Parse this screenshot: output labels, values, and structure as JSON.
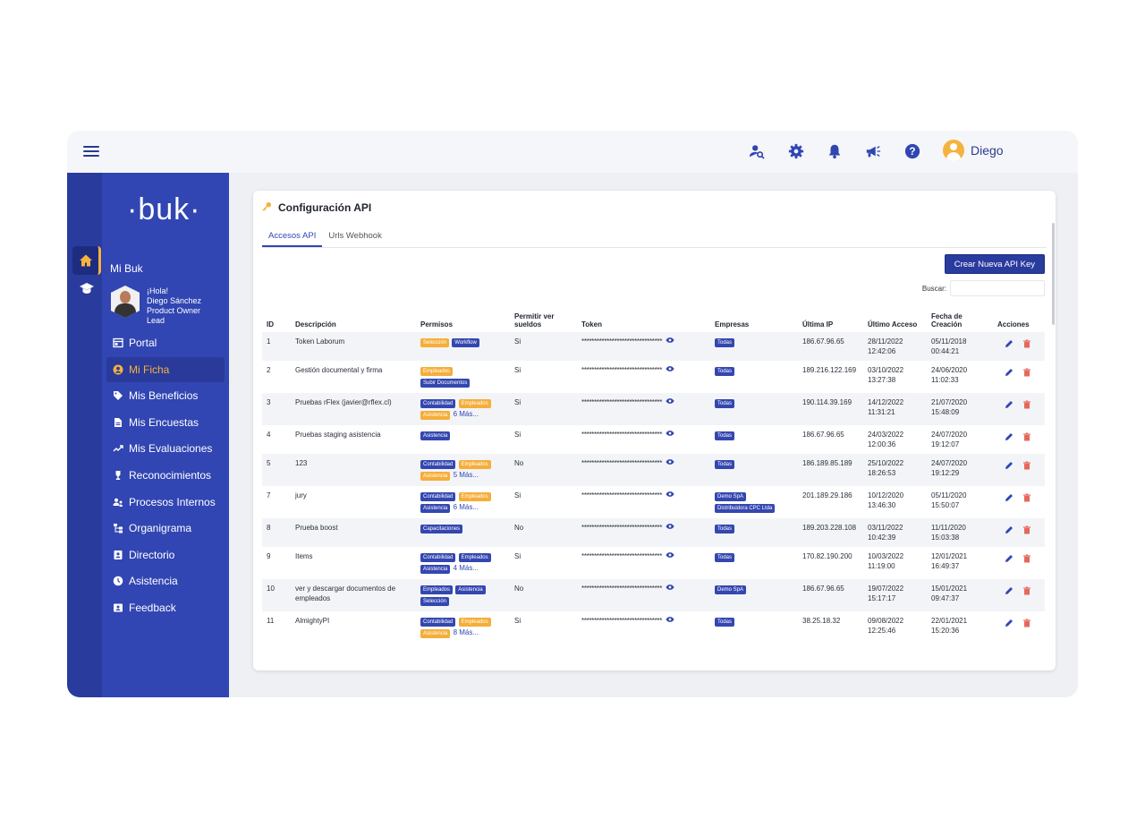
{
  "topbar": {
    "user_name": "Diego",
    "icons": [
      "menu-icon",
      "user-search-icon",
      "gear-icon",
      "bell-icon",
      "megaphone-icon",
      "help-icon"
    ]
  },
  "sidebar": {
    "logo": "·buk·",
    "section": "Mi Buk",
    "profile": {
      "greeting": "¡Hola!",
      "name": "Diego Sánchez",
      "role_line1": "Product Owner",
      "role_line2": "Lead"
    },
    "items": [
      {
        "label": "Portal",
        "icon": "portal-icon"
      },
      {
        "label": "Mi Ficha",
        "icon": "user-circle-icon",
        "active": true
      },
      {
        "label": "Mis Beneficios",
        "icon": "tag-icon"
      },
      {
        "label": "Mis Encuestas",
        "icon": "document-icon"
      },
      {
        "label": "Mis Evaluaciones",
        "icon": "trend-icon"
      },
      {
        "label": "Reconocimientos",
        "icon": "trophy-icon"
      },
      {
        "label": "Procesos Internos",
        "icon": "users-icon"
      },
      {
        "label": "Organigrama",
        "icon": "org-chart-icon"
      },
      {
        "label": "Directorio",
        "icon": "contact-icon"
      },
      {
        "label": "Asistencia",
        "icon": "clock-icon"
      },
      {
        "label": "Feedback",
        "icon": "feedback-icon"
      }
    ]
  },
  "card": {
    "title": "Configuración API",
    "tabs": [
      "Accesos API",
      "Urls Webhook"
    ],
    "new_button": "Crear Nueva API Key",
    "search_label": "Buscar:"
  },
  "table": {
    "headers": [
      "ID",
      "Descripción",
      "Permisos",
      "Permitir ver sueldos",
      "Token",
      "Empresas",
      "Última IP",
      "Último Acceso",
      "Fecha de Creación",
      "Acciones"
    ],
    "token_mask": "********************************",
    "rows": [
      {
        "id": "1",
        "desc": "Token Laborum",
        "perms": [
          [
            "Selección",
            "y"
          ],
          [
            "Workflow",
            "b"
          ]
        ],
        "more": "",
        "sueldos": "Si",
        "empresas": [
          "Todas"
        ],
        "ip": "186.67.96.65",
        "acceso_d": "28/11/2022",
        "acceso_t": "12:42:06",
        "creacion_d": "05/11/2018",
        "creacion_t": "00:44:21"
      },
      {
        "id": "2",
        "desc": "Gestión documental y firma",
        "perms": [
          [
            "Empleados",
            "y"
          ],
          [
            "Subir Documentos",
            "b"
          ]
        ],
        "more": "",
        "sueldos": "Si",
        "empresas": [
          "Todas"
        ],
        "ip": "189.216.122.169",
        "acceso_d": "03/10/2022",
        "acceso_t": "13:27:38",
        "creacion_d": "24/06/2020",
        "creacion_t": "11:02:33"
      },
      {
        "id": "3",
        "desc": "Pruebas rFlex (javier@rflex.cl)",
        "perms": [
          [
            "Contabilidad",
            "b"
          ],
          [
            "Empleados",
            "y"
          ],
          [
            "Asistencia",
            "y"
          ]
        ],
        "more": "6 Más...",
        "sueldos": "Si",
        "empresas": [
          "Todas"
        ],
        "ip": "190.114.39.169",
        "acceso_d": "14/12/2022",
        "acceso_t": "11:31:21",
        "creacion_d": "21/07/2020",
        "creacion_t": "15:48:09"
      },
      {
        "id": "4",
        "desc": "Pruebas staging asistencia",
        "perms": [
          [
            "Asistencia",
            "b"
          ]
        ],
        "more": "",
        "sueldos": "Si",
        "empresas": [
          "Todas"
        ],
        "ip": "186.67.96.65",
        "acceso_d": "24/03/2022",
        "acceso_t": "12:00:36",
        "creacion_d": "24/07/2020",
        "creacion_t": "19:12:07"
      },
      {
        "id": "5",
        "desc": "123",
        "perms": [
          [
            "Contabilidad",
            "b"
          ],
          [
            "Empleados",
            "y"
          ],
          [
            "Asistencia",
            "y"
          ]
        ],
        "more": "5 Más...",
        "sueldos": "No",
        "empresas": [
          "Todas"
        ],
        "ip": "186.189.85.189",
        "acceso_d": "25/10/2022",
        "acceso_t": "18:26:53",
        "creacion_d": "24/07/2020",
        "creacion_t": "19:12:29"
      },
      {
        "id": "7",
        "desc": "jury",
        "perms": [
          [
            "Contabilidad",
            "b"
          ],
          [
            "Empleados",
            "y"
          ],
          [
            "Asistencia",
            "b"
          ]
        ],
        "more": "6 Más...",
        "sueldos": "Si",
        "empresas": [
          "Demo SpA",
          "Distribuidora CPC Ltda"
        ],
        "ip": "201.189.29.186",
        "acceso_d": "10/12/2020",
        "acceso_t": "13:46:30",
        "creacion_d": "05/11/2020",
        "creacion_t": "15:50:07"
      },
      {
        "id": "8",
        "desc": "Prueba boost",
        "perms": [
          [
            "Capacitaciones",
            "b"
          ]
        ],
        "more": "",
        "sueldos": "No",
        "empresas": [
          "Todas"
        ],
        "ip": "189.203.228.108",
        "acceso_d": "03/11/2022",
        "acceso_t": "10:42:39",
        "creacion_d": "11/11/2020",
        "creacion_t": "15:03:38"
      },
      {
        "id": "9",
        "desc": "Items",
        "perms": [
          [
            "Contabilidad",
            "b"
          ],
          [
            "Empleados",
            "b"
          ],
          [
            "Asistencia",
            "b"
          ]
        ],
        "more": "4 Más...",
        "sueldos": "Si",
        "empresas": [
          "Todas"
        ],
        "ip": "170.82.190.200",
        "acceso_d": "10/03/2022",
        "acceso_t": "11:19:00",
        "creacion_d": "12/01/2021",
        "creacion_t": "16:49:37"
      },
      {
        "id": "10",
        "desc": "ver y descargar documentos de empleados",
        "perms": [
          [
            "Empleados",
            "b"
          ],
          [
            "Asistencia",
            "b"
          ],
          [
            "Selección",
            "b"
          ]
        ],
        "more": "",
        "sueldos": "No",
        "empresas": [
          "Demo SpA"
        ],
        "ip": "186.67.96.65",
        "acceso_d": "19/07/2022",
        "acceso_t": "15:17:17",
        "creacion_d": "15/01/2021",
        "creacion_t": "09:47:37"
      },
      {
        "id": "11",
        "desc": "AlmightyPI",
        "perms": [
          [
            "Contabilidad",
            "b"
          ],
          [
            "Empleados",
            "y"
          ],
          [
            "Asistencia",
            "y"
          ]
        ],
        "more": "8 Más...",
        "sueldos": "Si",
        "empresas": [
          "Todas"
        ],
        "ip": "38.25.18.32",
        "acceso_d": "09/08/2022",
        "acceso_t": "12:25:46",
        "creacion_d": "22/01/2021",
        "creacion_t": "15:20:36"
      }
    ]
  },
  "colors": {
    "primary": "#3146b3",
    "dark": "#2a3b9e",
    "accent": "#f5b23d",
    "delete": "#e5685a"
  }
}
